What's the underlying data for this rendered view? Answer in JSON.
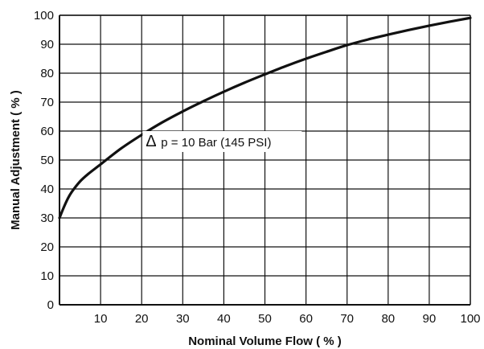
{
  "chart_data": {
    "type": "line",
    "xlabel": "Nominal Volume Flow ( % )",
    "ylabel": "Manual Adjustment ( % )",
    "xlim": [
      0,
      100
    ],
    "ylim": [
      0,
      100
    ],
    "x_ticks": [
      10,
      20,
      30,
      40,
      50,
      60,
      70,
      80,
      90,
      100
    ],
    "y_ticks": [
      0,
      10,
      20,
      30,
      40,
      50,
      60,
      70,
      80,
      90,
      100
    ],
    "grid": true,
    "annotation": {
      "text": "p = 10 Bar (145 PSI)",
      "symbol": "Δ",
      "x": 21,
      "y": 55
    },
    "series": [
      {
        "x": [
          0,
          1,
          2,
          3,
          5,
          7,
          10,
          15,
          20,
          25,
          30,
          35,
          40,
          45,
          50,
          55,
          60,
          65,
          70,
          75,
          80,
          85,
          90,
          95,
          100
        ],
        "y": [
          30,
          33.5,
          36.6,
          39,
          42.6,
          45.2,
          48.5,
          54,
          58.7,
          63,
          66.8,
          70.3,
          73.6,
          76.7,
          79.6,
          82.4,
          85,
          87.4,
          89.7,
          91.6,
          93.3,
          94.9,
          96.4,
          97.8,
          99.1
        ]
      }
    ],
    "colors": {
      "line": "#111111",
      "grid": "#111111"
    }
  }
}
